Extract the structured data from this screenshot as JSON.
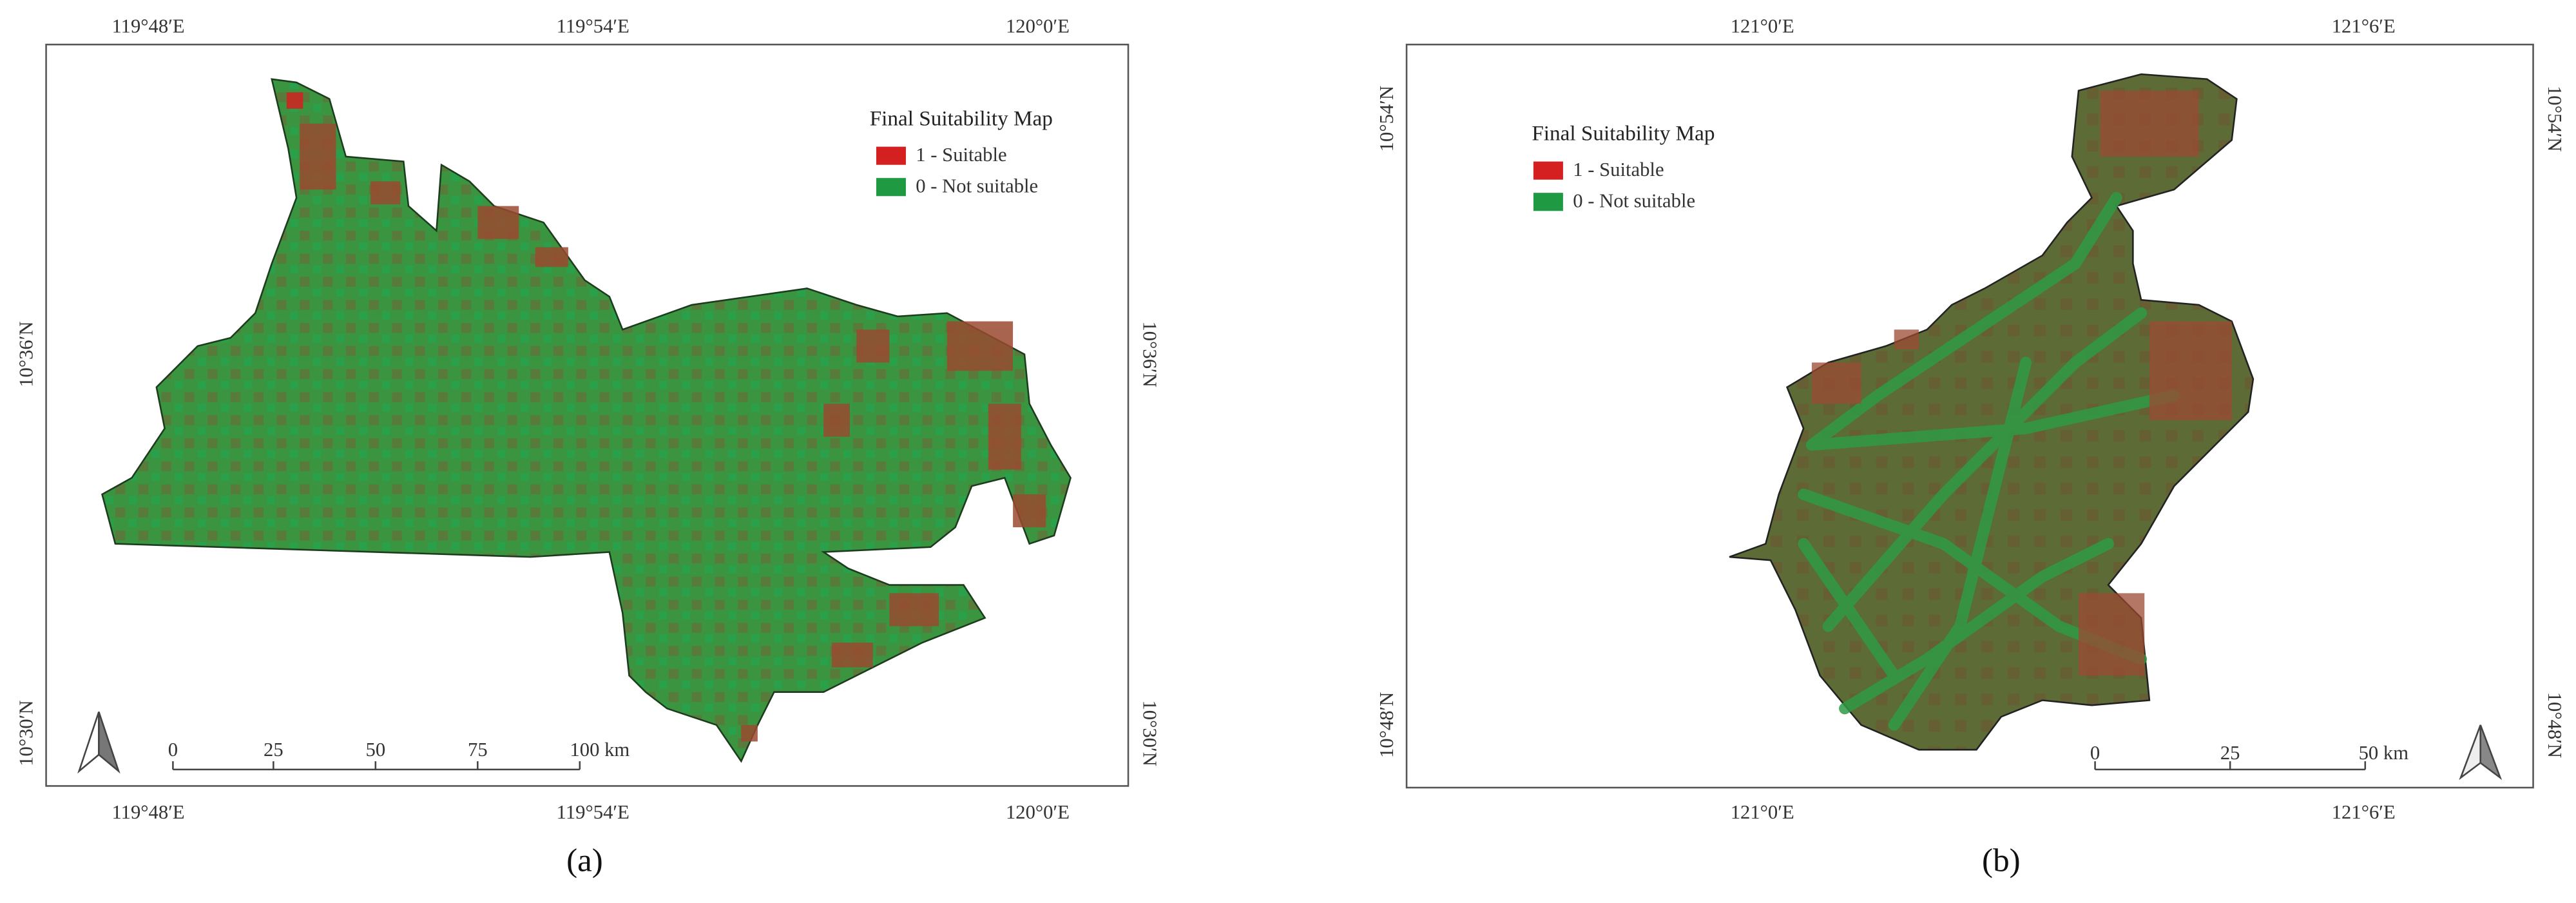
{
  "panels": [
    {
      "label": "(a)",
      "legend": {
        "title": "Final Suitability Map",
        "items": [
          "1 - Suitable",
          "0 - Not suitable"
        ]
      },
      "top_labels": [
        "119°48′E",
        "119°54′E",
        "120°0′E"
      ],
      "bottom_labels": [
        "119°48′E",
        "119°54′E",
        "120°0′E"
      ],
      "left_labels": [
        "10°36′N",
        "10°30′N"
      ],
      "right_labels": [
        "10°36′N",
        "10°30′N"
      ],
      "scale_labels": [
        "0",
        "25",
        "50",
        "75",
        "100 km"
      ]
    },
    {
      "label": "(b)",
      "legend": {
        "title": "Final Suitability Map",
        "items": [
          "1 - Suitable",
          "0 - Not suitable"
        ]
      },
      "top_labels": [
        "121°0′E",
        "121°6′E"
      ],
      "bottom_labels": [
        "121°0′E",
        "121°6′E"
      ],
      "left_labels": [
        "10°54′N",
        "10°48′N"
      ],
      "right_labels": [
        "10°54′N",
        "10°48′N"
      ],
      "scale_labels": [
        "0",
        "25",
        "50 km"
      ]
    }
  ]
}
